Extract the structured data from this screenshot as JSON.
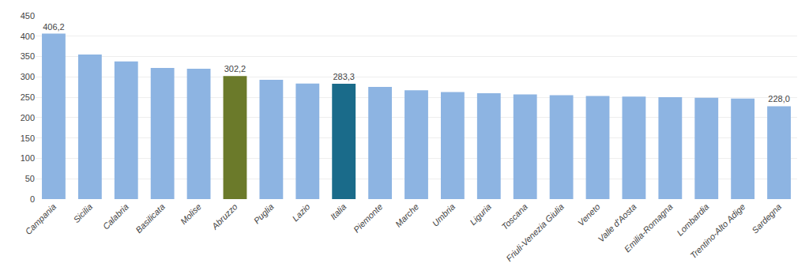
{
  "chart_data": {
    "type": "bar",
    "categories": [
      "Campania",
      "Sicilia",
      "Calabria",
      "Basilicata",
      "Molise",
      "Abruzzo",
      "Puglia",
      "Lazio",
      "Italia",
      "Piemonte",
      "Marche",
      "Umbria",
      "Liguria",
      "Toscana",
      "Friuli-Venezia Giulia",
      "Veneto",
      "Valle d'Aosta",
      "Emilia-Romagna",
      "Lombardia",
      "Trentino-Alto Adige",
      "Sardegna"
    ],
    "values": [
      406.2,
      355.0,
      338.0,
      322.0,
      320.0,
      302.2,
      293.0,
      283.5,
      283.3,
      275.5,
      267.0,
      263.0,
      260.0,
      257.0,
      255.0,
      253.0,
      251.5,
      250.0,
      249.0,
      247.0,
      228.0
    ],
    "value_labels": [
      "406,2",
      null,
      null,
      null,
      null,
      "302,2",
      null,
      null,
      "283,3",
      null,
      null,
      null,
      null,
      null,
      null,
      null,
      null,
      null,
      null,
      null,
      "228,0"
    ],
    "colors": [
      "#8db4e2",
      "#8db4e2",
      "#8db4e2",
      "#8db4e2",
      "#8db4e2",
      "#6b7a2a",
      "#8db4e2",
      "#8db4e2",
      "#1a6b8a",
      "#8db4e2",
      "#8db4e2",
      "#8db4e2",
      "#8db4e2",
      "#8db4e2",
      "#8db4e2",
      "#8db4e2",
      "#8db4e2",
      "#8db4e2",
      "#8db4e2",
      "#8db4e2",
      "#8db4e2"
    ],
    "ylim": [
      0,
      450
    ],
    "yticks": [
      0,
      50,
      100,
      150,
      200,
      250,
      300,
      350,
      400,
      450
    ],
    "grid": true
  }
}
